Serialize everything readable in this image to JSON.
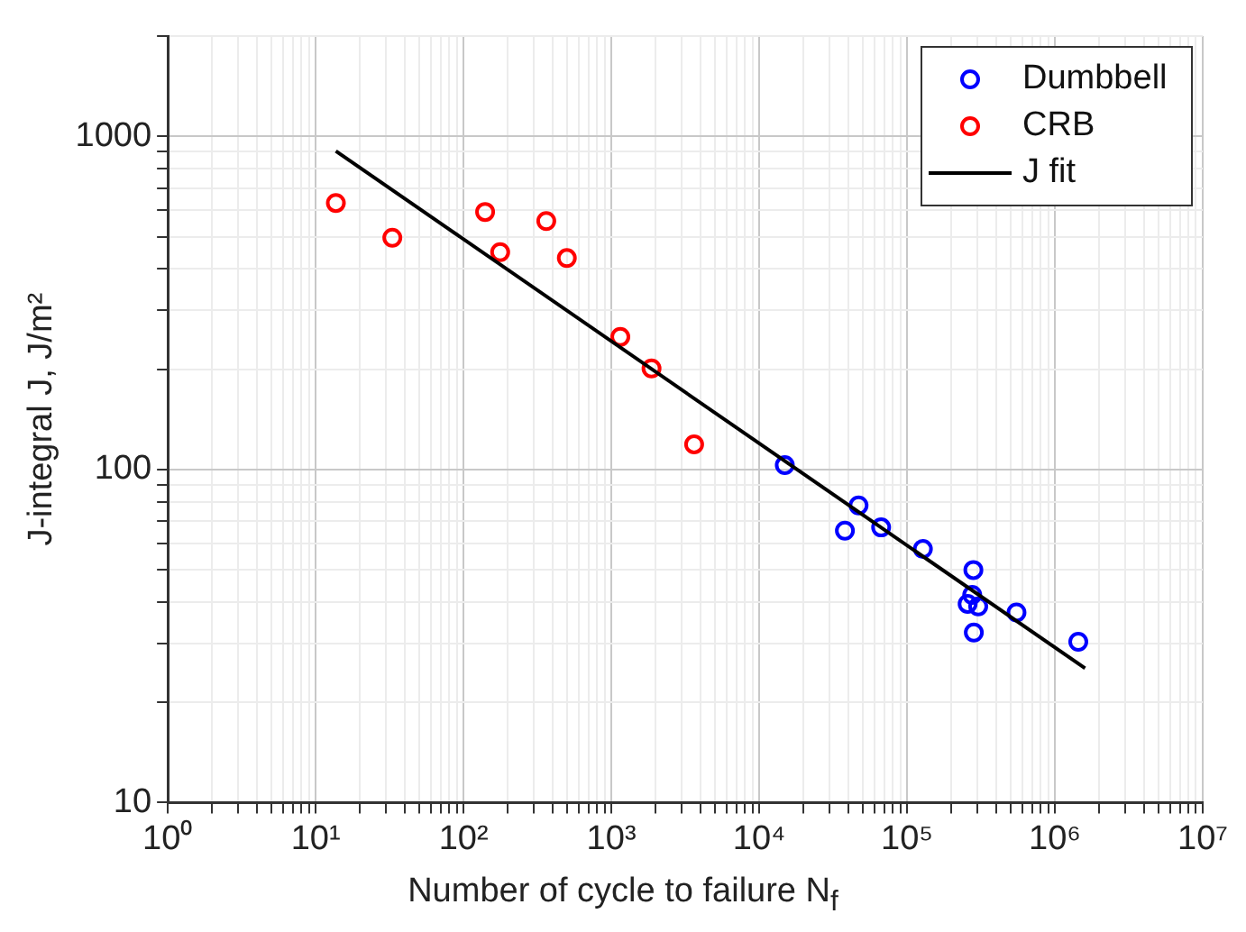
{
  "chart_data": {
    "type": "scatter",
    "xlabel": "Number of cycle to failure N$_{f}$",
    "ylabel": "J-integral J, J/m²",
    "log": "xy",
    "grid": true,
    "legend": "top right",
    "marker": "circle",
    "xlim": [
      1,
      10000000
    ],
    "ylim": [
      10,
      2000
    ],
    "xticks": [
      {
        "value": 1,
        "label": "10⁰"
      },
      {
        "value": 2,
        "label": null
      },
      {
        "value": 3,
        "label": null
      },
      {
        "value": 4,
        "label": null
      },
      {
        "value": 5,
        "label": null
      },
      {
        "value": 6,
        "label": null
      },
      {
        "value": 7,
        "label": null
      },
      {
        "value": 8,
        "label": null
      },
      {
        "value": 9,
        "label": null
      },
      {
        "value": 10,
        "label": "10¹"
      },
      {
        "value": 20,
        "label": null
      },
      {
        "value": 30,
        "label": null
      },
      {
        "value": 40,
        "label": null
      },
      {
        "value": 50,
        "label": null
      },
      {
        "value": 60,
        "label": null
      },
      {
        "value": 70,
        "label": null
      },
      {
        "value": 80,
        "label": null
      },
      {
        "value": 90,
        "label": null
      },
      {
        "value": 100,
        "label": "10²"
      },
      {
        "value": 200,
        "label": null
      },
      {
        "value": 300,
        "label": null
      },
      {
        "value": 400,
        "label": null
      },
      {
        "value": 500,
        "label": null
      },
      {
        "value": 600,
        "label": null
      },
      {
        "value": 700,
        "label": null
      },
      {
        "value": 800,
        "label": null
      },
      {
        "value": 900,
        "label": null
      },
      {
        "value": 1000,
        "label": "10³"
      },
      {
        "value": 2000,
        "label": null
      },
      {
        "value": 3000,
        "label": null
      },
      {
        "value": 4000,
        "label": null
      },
      {
        "value": 5000,
        "label": null
      },
      {
        "value": 6000,
        "label": null
      },
      {
        "value": 7000,
        "label": null
      },
      {
        "value": 8000,
        "label": null
      },
      {
        "value": 9000,
        "label": null
      },
      {
        "value": 10000,
        "label": "10⁴"
      },
      {
        "value": 20000,
        "label": null
      },
      {
        "value": 30000,
        "label": null
      },
      {
        "value": 40000,
        "label": null
      },
      {
        "value": 50000,
        "label": null
      },
      {
        "value": 60000,
        "label": null
      },
      {
        "value": 70000,
        "label": null
      },
      {
        "value": 80000,
        "label": null
      },
      {
        "value": 90000,
        "label": null
      },
      {
        "value": 100000,
        "label": "10⁵"
      },
      {
        "value": 200000,
        "label": null
      },
      {
        "value": 300000,
        "label": null
      },
      {
        "value": 400000,
        "label": null
      },
      {
        "value": 500000,
        "label": null
      },
      {
        "value": 600000,
        "label": null
      },
      {
        "value": 700000,
        "label": null
      },
      {
        "value": 800000,
        "label": null
      },
      {
        "value": 900000,
        "label": null
      },
      {
        "value": 1000000,
        "label": "10⁶"
      },
      {
        "value": 2000000,
        "label": null
      },
      {
        "value": 3000000,
        "label": null
      },
      {
        "value": 4000000,
        "label": null
      },
      {
        "value": 5000000,
        "label": null
      },
      {
        "value": 6000000,
        "label": null
      },
      {
        "value": 7000000,
        "label": null
      },
      {
        "value": 8000000,
        "label": null
      },
      {
        "value": 9000000,
        "label": null
      },
      {
        "value": 10000000,
        "label": "10⁷"
      }
    ],
    "yticks": [
      10,
      {
        "value": 20,
        "label": null
      },
      {
        "value": 30,
        "label": null
      },
      {
        "value": 40,
        "label": null
      },
      {
        "value": 50,
        "label": null
      },
      {
        "value": 60,
        "label": null
      },
      {
        "value": 70,
        "label": null
      },
      {
        "value": 80,
        "label": null
      },
      {
        "value": 90,
        "label": null
      },
      100,
      {
        "value": 200,
        "label": null
      },
      {
        "value": 300,
        "label": null
      },
      {
        "value": 400,
        "label": null
      },
      {
        "value": 500,
        "label": null
      },
      {
        "value": 600,
        "label": null
      },
      {
        "value": 700,
        "label": null
      },
      {
        "value": 800,
        "label": null
      },
      {
        "value": 900,
        "label": null
      },
      1000,
      {
        "value": 2000,
        "label": null
      }
    ],
    "series": [
      {
        "name": "Dumbbell",
        "type": "scatter",
        "color": "#0000ff",
        "x": [
          14900,
          38000,
          47000,
          66800,
          128000,
          281000,
          276000,
          257000,
          303000,
          283000,
          550000,
          1440000
        ],
        "values": [
          103,
          65.5,
          78,
          67,
          57.7,
          49.9,
          42,
          39.5,
          38.8,
          32.4,
          37.2,
          30.4
        ]
      },
      {
        "name": "CRB",
        "type": "scatter",
        "color": "#ff0000",
        "x": [
          13.7,
          33,
          140,
          177,
          363,
          500,
          1150,
          1870,
          3630
        ],
        "values": [
          631,
          496,
          593,
          449,
          557,
          431,
          250,
          201,
          119
        ]
      },
      {
        "name": "J fit",
        "type": "line",
        "color": "#000000",
        "marker": "none",
        "line_style": "solid",
        "x": [
          13.7,
          1600000
        ],
        "values": [
          903,
          25.3
        ]
      }
    ]
  }
}
